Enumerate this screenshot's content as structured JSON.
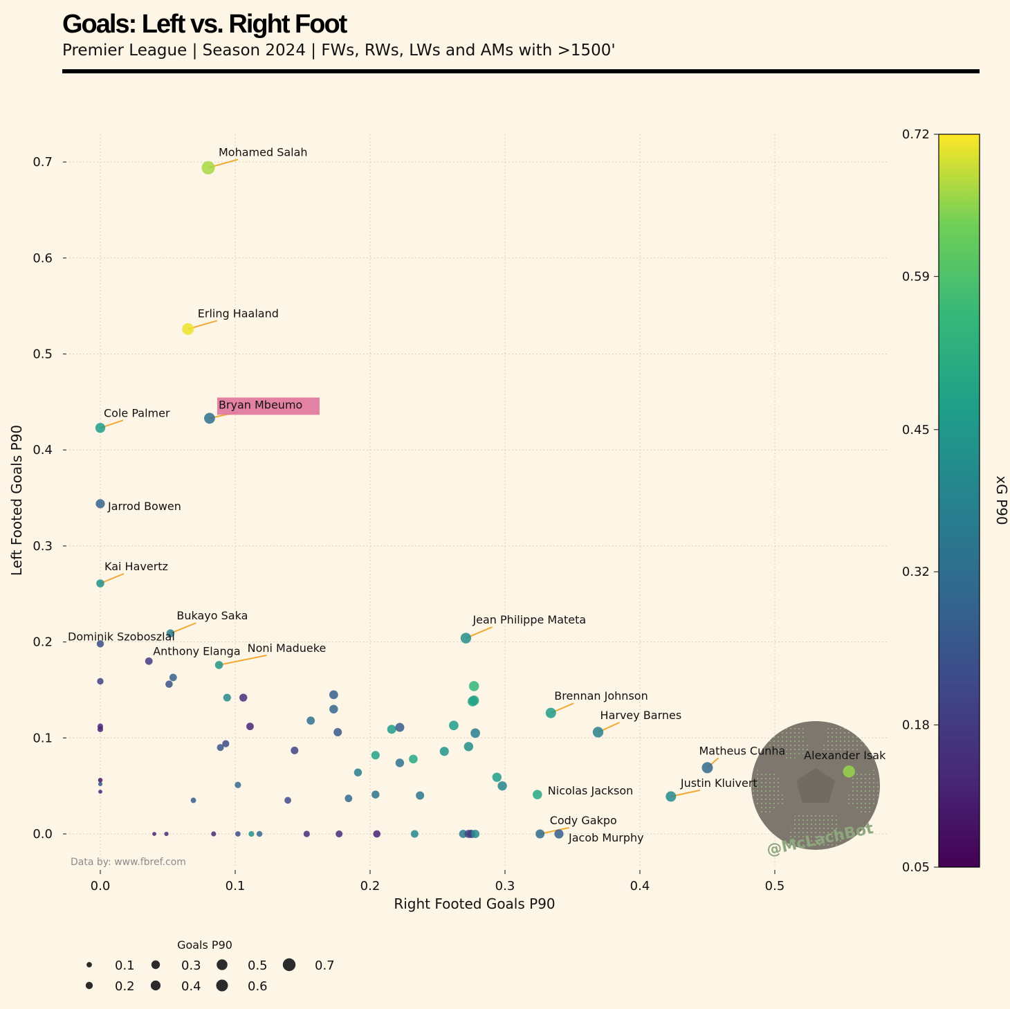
{
  "title": "Goals: Left vs. Right Foot",
  "subtitle": "Premier League | Season 2024 | FWs, RWs, LWs and AMs with >1500'",
  "source": "Data by: www.fbref.com",
  "credit": "@McLachBot",
  "colors": {
    "background": "#fdf5e6",
    "leader_line": "#f0a830",
    "highlight_box": "#e0769c",
    "colormap": "viridis"
  },
  "chart_data": {
    "type": "scatter",
    "xlabel": "Right Footed Goals P90",
    "ylabel": "Left Footed Goals P90",
    "xlim": [
      -0.03,
      0.585
    ],
    "ylim": [
      -0.033,
      0.73
    ],
    "xticks": [
      0.0,
      0.1,
      0.2,
      0.3,
      0.4,
      0.5
    ],
    "yticks": [
      0.0,
      0.1,
      0.2,
      0.3,
      0.4,
      0.5,
      0.6,
      0.7
    ],
    "grid": true,
    "colorbar": {
      "label": "xG P90",
      "min": 0.05,
      "max": 0.72,
      "ticks": [
        0.05,
        0.18,
        0.32,
        0.45,
        0.59,
        0.72
      ]
    },
    "size_legend": {
      "title": "Goals P90",
      "values": [
        0.1,
        0.2,
        0.3,
        0.4,
        0.5,
        0.6,
        0.7
      ]
    },
    "labeled_points": [
      {
        "name": "Mohamed Salah",
        "x": 0.08,
        "y": 0.694,
        "xg": 0.67,
        "goals": 0.77
      },
      {
        "name": "Erling Haaland",
        "x": 0.065,
        "y": 0.526,
        "xg": 0.71,
        "goals": 0.59
      },
      {
        "name": "Bryan Mbeumo",
        "x": 0.081,
        "y": 0.433,
        "xg": 0.32,
        "goals": 0.51,
        "highlight": true
      },
      {
        "name": "Cole Palmer",
        "x": 0.0,
        "y": 0.423,
        "xg": 0.47,
        "goals": 0.42
      },
      {
        "name": "Jarrod Bowen",
        "x": 0.0,
        "y": 0.344,
        "xg": 0.29,
        "goals": 0.34
      },
      {
        "name": "Kai Havertz",
        "x": 0.0,
        "y": 0.261,
        "xg": 0.43,
        "goals": 0.26
      },
      {
        "name": "Bukayo Saka",
        "x": 0.052,
        "y": 0.209,
        "xg": 0.38,
        "goals": 0.26
      },
      {
        "name": "Dominik Szoboszlai",
        "x": 0.0,
        "y": 0.198,
        "xg": 0.23,
        "goals": 0.2
      },
      {
        "name": "Anthony Elanga",
        "x": 0.036,
        "y": 0.18,
        "xg": 0.18,
        "goals": 0.22
      },
      {
        "name": "Noni Madueke",
        "x": 0.088,
        "y": 0.176,
        "xg": 0.44,
        "goals": 0.26
      },
      {
        "name": "Jean Philippe Mateta",
        "x": 0.271,
        "y": 0.204,
        "xg": 0.42,
        "goals": 0.48
      },
      {
        "name": "Brennan Johnson",
        "x": 0.334,
        "y": 0.126,
        "xg": 0.46,
        "goals": 0.46
      },
      {
        "name": "Harvey Barnes",
        "x": 0.369,
        "y": 0.106,
        "xg": 0.38,
        "goals": 0.48
      },
      {
        "name": "Matheus Cunha",
        "x": 0.45,
        "y": 0.069,
        "xg": 0.3,
        "goals": 0.52
      },
      {
        "name": "Alexander Isak",
        "x": 0.555,
        "y": 0.065,
        "xg": 0.66,
        "goals": 0.62
      },
      {
        "name": "Justin Kluivert",
        "x": 0.423,
        "y": 0.039,
        "xg": 0.41,
        "goals": 0.46
      },
      {
        "name": "Nicolas Jackson",
        "x": 0.324,
        "y": 0.041,
        "xg": 0.5,
        "goals": 0.37
      },
      {
        "name": "Cody Gakpo",
        "x": 0.326,
        "y": 0.0,
        "xg": 0.31,
        "goals": 0.33
      },
      {
        "name": "Jacob Murphy",
        "x": 0.34,
        "y": 0.0,
        "xg": 0.28,
        "goals": 0.34
      }
    ],
    "other_points": [
      {
        "x": 0.0,
        "y": 0.159,
        "xg": 0.2,
        "goals": 0.16
      },
      {
        "x": 0.0,
        "y": 0.112,
        "xg": 0.14,
        "goals": 0.11
      },
      {
        "x": 0.0,
        "y": 0.109,
        "xg": 0.12,
        "goals": 0.11
      },
      {
        "x": 0.0,
        "y": 0.056,
        "xg": 0.1,
        "goals": 0.06
      },
      {
        "x": 0.0,
        "y": 0.052,
        "xg": 0.26,
        "goals": 0.05
      },
      {
        "x": 0.0,
        "y": 0.044,
        "xg": 0.12,
        "goals": 0.04
      },
      {
        "x": 0.054,
        "y": 0.163,
        "xg": 0.28,
        "goals": 0.22
      },
      {
        "x": 0.051,
        "y": 0.156,
        "xg": 0.24,
        "goals": 0.21
      },
      {
        "x": 0.094,
        "y": 0.142,
        "xg": 0.4,
        "goals": 0.24
      },
      {
        "x": 0.106,
        "y": 0.142,
        "xg": 0.15,
        "goals": 0.25
      },
      {
        "x": 0.111,
        "y": 0.112,
        "xg": 0.13,
        "goals": 0.22
      },
      {
        "x": 0.093,
        "y": 0.094,
        "xg": 0.22,
        "goals": 0.19
      },
      {
        "x": 0.089,
        "y": 0.09,
        "xg": 0.25,
        "goals": 0.18
      },
      {
        "x": 0.144,
        "y": 0.087,
        "xg": 0.2,
        "goals": 0.23
      },
      {
        "x": 0.102,
        "y": 0.051,
        "xg": 0.3,
        "goals": 0.15
      },
      {
        "x": 0.069,
        "y": 0.035,
        "xg": 0.27,
        "goals": 0.1
      },
      {
        "x": 0.139,
        "y": 0.035,
        "xg": 0.22,
        "goals": 0.17
      },
      {
        "x": 0.156,
        "y": 0.118,
        "xg": 0.33,
        "goals": 0.27
      },
      {
        "x": 0.173,
        "y": 0.145,
        "xg": 0.28,
        "goals": 0.32
      },
      {
        "x": 0.173,
        "y": 0.13,
        "xg": 0.29,
        "goals": 0.3
      },
      {
        "x": 0.176,
        "y": 0.106,
        "xg": 0.26,
        "goals": 0.28
      },
      {
        "x": 0.191,
        "y": 0.064,
        "xg": 0.37,
        "goals": 0.25
      },
      {
        "x": 0.184,
        "y": 0.037,
        "xg": 0.3,
        "goals": 0.22
      },
      {
        "x": 0.204,
        "y": 0.041,
        "xg": 0.33,
        "goals": 0.25
      },
      {
        "x": 0.204,
        "y": 0.082,
        "xg": 0.48,
        "goals": 0.29
      },
      {
        "x": 0.216,
        "y": 0.109,
        "xg": 0.46,
        "goals": 0.33
      },
      {
        "x": 0.222,
        "y": 0.111,
        "xg": 0.27,
        "goals": 0.33
      },
      {
        "x": 0.222,
        "y": 0.074,
        "xg": 0.33,
        "goals": 0.3
      },
      {
        "x": 0.232,
        "y": 0.078,
        "xg": 0.5,
        "goals": 0.31
      },
      {
        "x": 0.237,
        "y": 0.04,
        "xg": 0.34,
        "goals": 0.28
      },
      {
        "x": 0.255,
        "y": 0.086,
        "xg": 0.44,
        "goals": 0.34
      },
      {
        "x": 0.262,
        "y": 0.113,
        "xg": 0.47,
        "goals": 0.38
      },
      {
        "x": 0.273,
        "y": 0.091,
        "xg": 0.42,
        "goals": 0.36
      },
      {
        "x": 0.277,
        "y": 0.154,
        "xg": 0.55,
        "goals": 0.43
      },
      {
        "x": 0.277,
        "y": 0.139,
        "xg": 0.48,
        "goals": 0.42
      },
      {
        "x": 0.276,
        "y": 0.138,
        "xg": 0.5,
        "goals": 0.41
      },
      {
        "x": 0.278,
        "y": 0.105,
        "xg": 0.37,
        "goals": 0.38
      },
      {
        "x": 0.294,
        "y": 0.059,
        "xg": 0.47,
        "goals": 0.35
      },
      {
        "x": 0.298,
        "y": 0.05,
        "xg": 0.39,
        "goals": 0.35
      },
      {
        "x": 0.04,
        "y": 0.0,
        "xg": 0.12,
        "goals": 0.04
      },
      {
        "x": 0.049,
        "y": 0.0,
        "xg": 0.15,
        "goals": 0.05
      },
      {
        "x": 0.084,
        "y": 0.0,
        "xg": 0.14,
        "goals": 0.08
      },
      {
        "x": 0.102,
        "y": 0.0,
        "xg": 0.22,
        "goals": 0.1
      },
      {
        "x": 0.112,
        "y": 0.0,
        "xg": 0.44,
        "goals": 0.11
      },
      {
        "x": 0.118,
        "y": 0.0,
        "xg": 0.3,
        "goals": 0.12
      },
      {
        "x": 0.153,
        "y": 0.0,
        "xg": 0.15,
        "goals": 0.15
      },
      {
        "x": 0.177,
        "y": 0.0,
        "xg": 0.14,
        "goals": 0.18
      },
      {
        "x": 0.205,
        "y": 0.0,
        "xg": 0.12,
        "goals": 0.21
      },
      {
        "x": 0.233,
        "y": 0.0,
        "xg": 0.4,
        "goals": 0.23
      },
      {
        "x": 0.269,
        "y": 0.0,
        "xg": 0.36,
        "goals": 0.27
      },
      {
        "x": 0.273,
        "y": 0.0,
        "xg": 0.22,
        "goals": 0.27
      },
      {
        "x": 0.275,
        "y": 0.0,
        "xg": 0.18,
        "goals": 0.28
      },
      {
        "x": 0.278,
        "y": 0.0,
        "xg": 0.41,
        "goals": 0.28
      }
    ]
  }
}
